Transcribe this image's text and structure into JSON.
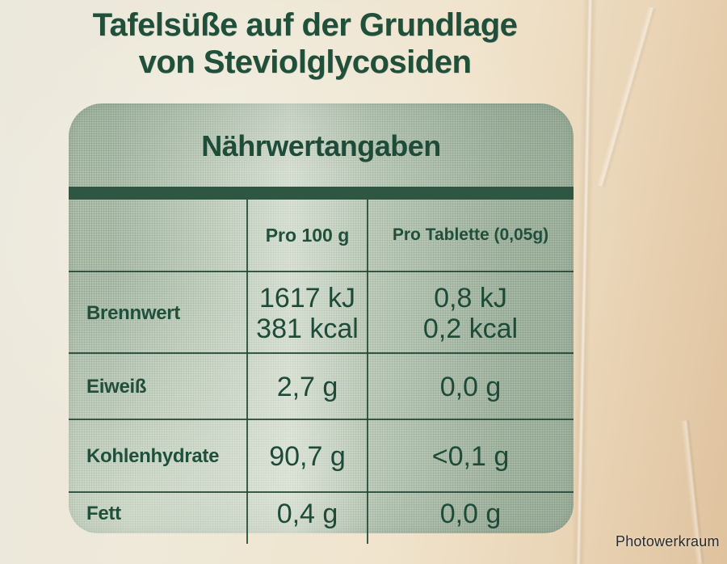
{
  "title": {
    "line1": "Tafelsüße auf der Grundlage",
    "line2": "von Steviolglycosiden"
  },
  "nutrition_table": {
    "heading": "Nährwertangaben",
    "columns": [
      "",
      "Pro 100 g",
      "Pro Tablette (0,05g)"
    ],
    "rows": [
      {
        "label": "Brennwert",
        "per_100g": [
          "1617 kJ",
          "381 kcal"
        ],
        "per_tablette": [
          "0,8 kJ",
          "0,2 kcal"
        ]
      },
      {
        "label": "Eiweiß",
        "per_100g": [
          "2,7 g"
        ],
        "per_tablette": [
          "0,0 g"
        ]
      },
      {
        "label": "Kohlenhydrate",
        "per_100g": [
          "90,7 g"
        ],
        "per_tablette": [
          "<0,1 g"
        ]
      },
      {
        "label": "Fett",
        "per_100g": [
          "0,4 g"
        ],
        "per_tablette": [
          "0,0 g"
        ]
      }
    ],
    "colors": {
      "panel_green": "#b9c8b5",
      "ink_green": "#1f4c38",
      "bar_green": "#2e5642",
      "paper_cream": "#eee9d9"
    }
  },
  "photo": {
    "watermark": "Photowerkraum"
  }
}
